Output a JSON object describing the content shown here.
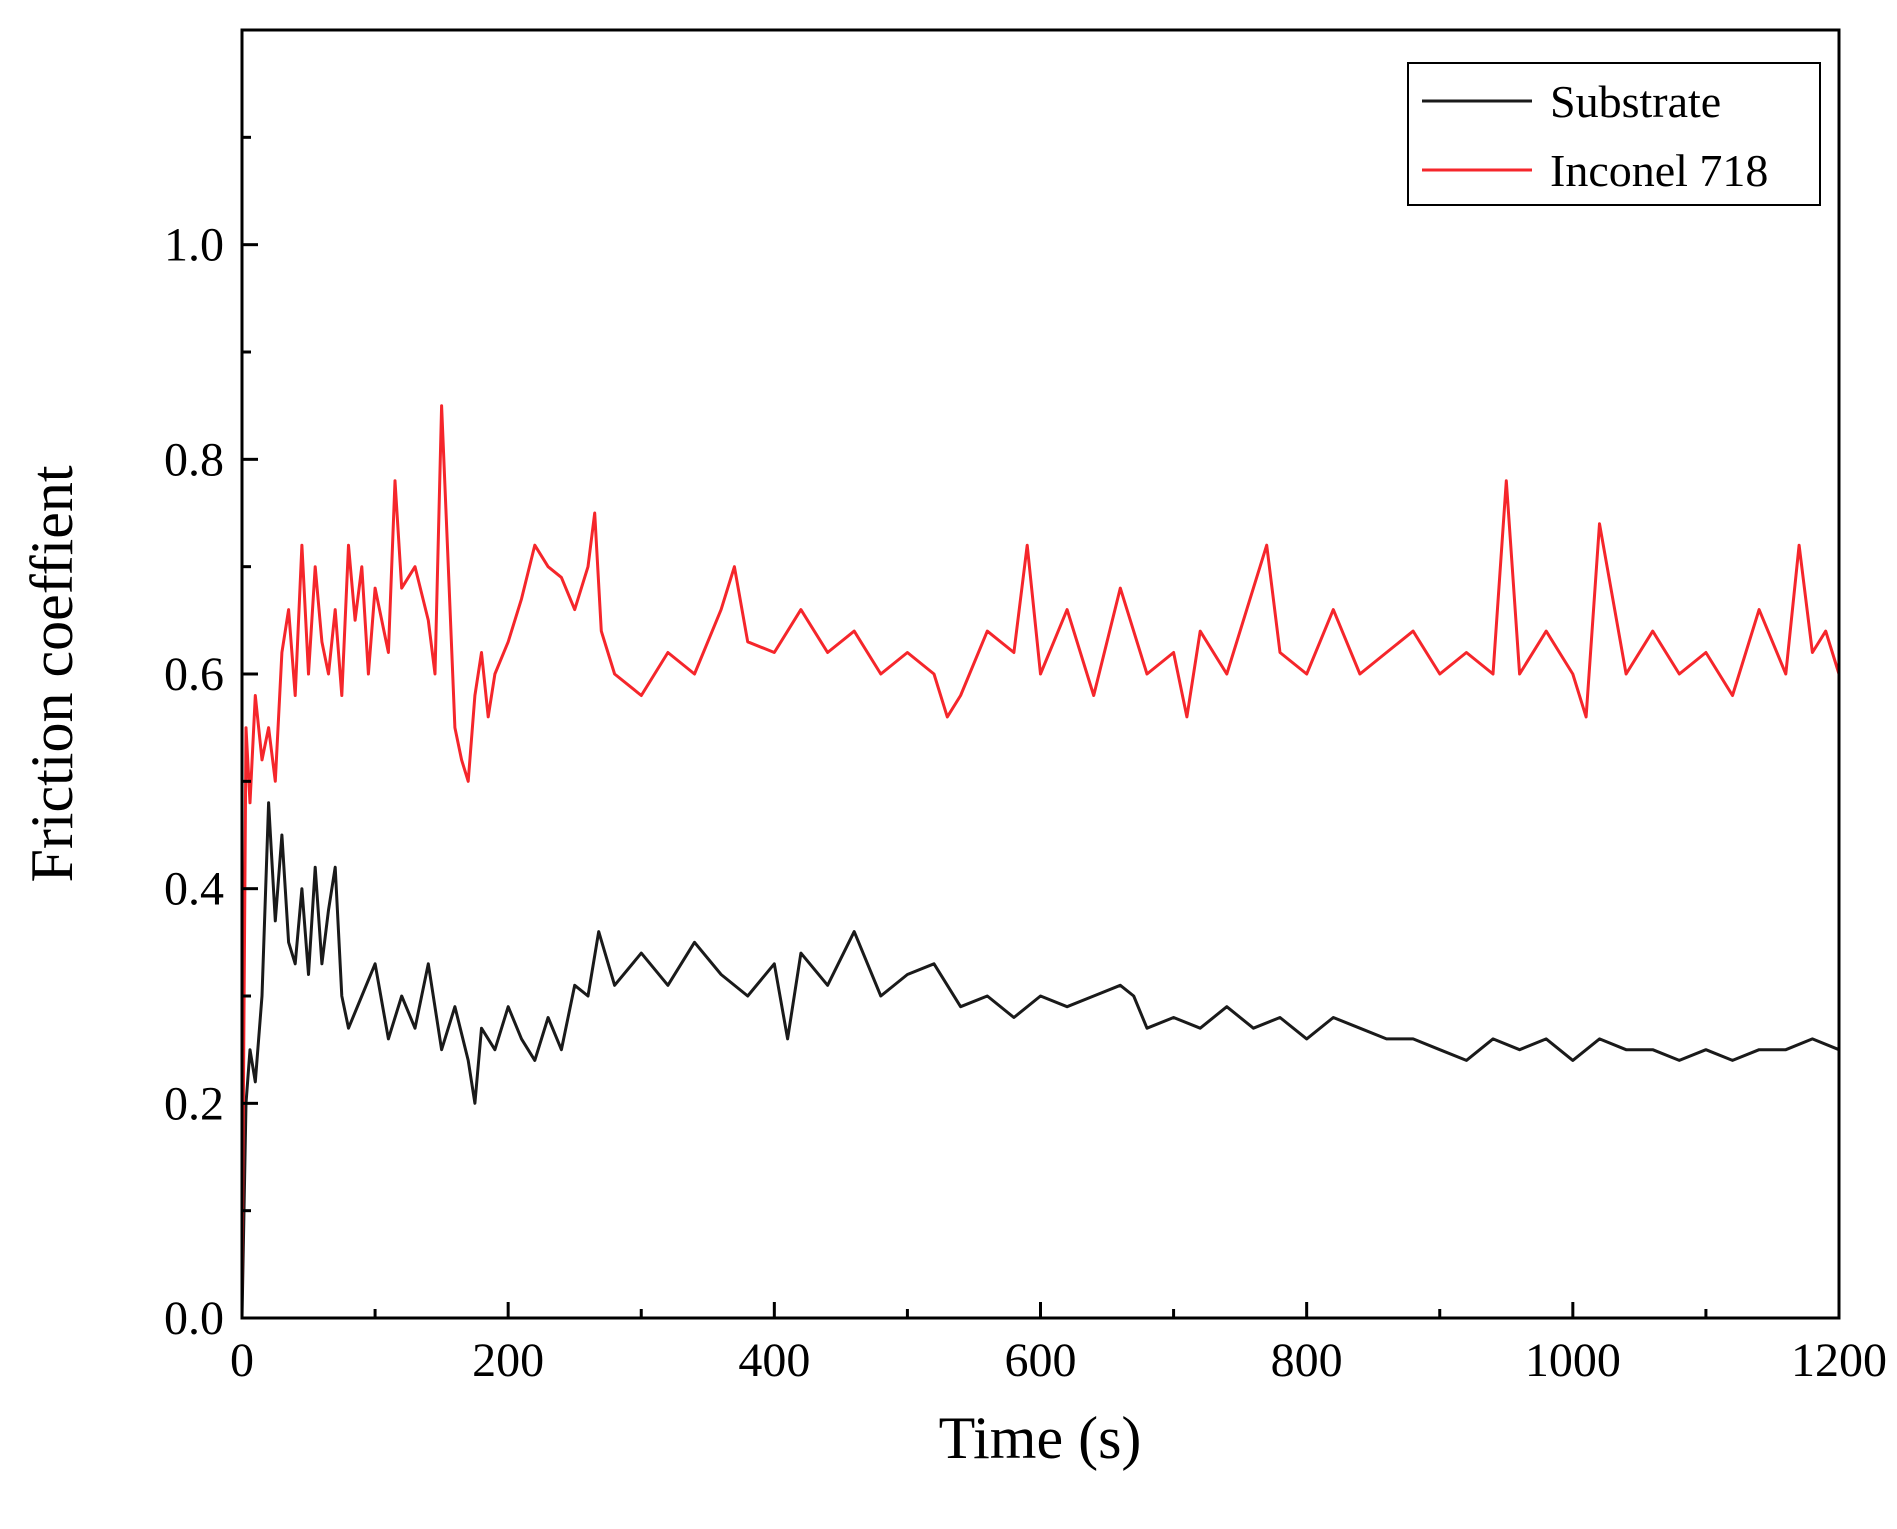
{
  "chart_data": {
    "type": "line",
    "title": "",
    "xlabel": "Time (s)",
    "ylabel": "Friction coeffient",
    "xlim": [
      0,
      1200
    ],
    "ylim": [
      0,
      1.2
    ],
    "x_ticks": [
      0,
      200,
      400,
      600,
      800,
      1000,
      1200
    ],
    "x_tick_labels": [
      "0",
      "200",
      "400",
      "600",
      "800",
      "1000",
      "1200"
    ],
    "y_ticks": [
      0.0,
      0.2,
      0.4,
      0.6,
      0.8,
      1.0
    ],
    "y_tick_labels": [
      "0.0",
      "0.2",
      "0.4",
      "0.6",
      "0.8",
      "1.0"
    ],
    "grid": false,
    "legend": {
      "position": "top-right",
      "entries": [
        "Substrate",
        "Inconel 718"
      ]
    },
    "series": [
      {
        "name": "Substrate",
        "color": "#1a1a1a",
        "x": [
          0,
          3,
          6,
          10,
          15,
          20,
          25,
          30,
          35,
          40,
          45,
          50,
          55,
          60,
          65,
          70,
          75,
          80,
          90,
          100,
          110,
          120,
          130,
          140,
          150,
          160,
          170,
          175,
          180,
          190,
          200,
          210,
          220,
          230,
          240,
          250,
          260,
          268,
          280,
          300,
          320,
          340,
          360,
          380,
          400,
          410,
          420,
          440,
          460,
          480,
          500,
          520,
          540,
          560,
          580,
          600,
          620,
          640,
          660,
          670,
          680,
          700,
          720,
          740,
          760,
          780,
          800,
          820,
          840,
          860,
          880,
          900,
          920,
          940,
          960,
          980,
          1000,
          1020,
          1040,
          1060,
          1080,
          1100,
          1120,
          1140,
          1160,
          1180,
          1200
        ],
        "values": [
          0.0,
          0.2,
          0.25,
          0.22,
          0.3,
          0.48,
          0.37,
          0.45,
          0.35,
          0.33,
          0.4,
          0.32,
          0.42,
          0.33,
          0.38,
          0.42,
          0.3,
          0.27,
          0.3,
          0.33,
          0.26,
          0.3,
          0.27,
          0.33,
          0.25,
          0.29,
          0.24,
          0.2,
          0.27,
          0.25,
          0.29,
          0.26,
          0.24,
          0.28,
          0.25,
          0.31,
          0.3,
          0.36,
          0.31,
          0.34,
          0.31,
          0.35,
          0.32,
          0.3,
          0.33,
          0.26,
          0.34,
          0.31,
          0.36,
          0.3,
          0.32,
          0.33,
          0.29,
          0.3,
          0.28,
          0.3,
          0.29,
          0.3,
          0.31,
          0.3,
          0.27,
          0.28,
          0.27,
          0.29,
          0.27,
          0.28,
          0.26,
          0.28,
          0.27,
          0.26,
          0.26,
          0.25,
          0.24,
          0.26,
          0.25,
          0.26,
          0.24,
          0.26,
          0.25,
          0.25,
          0.24,
          0.25,
          0.24,
          0.25,
          0.25,
          0.26,
          0.25
        ]
      },
      {
        "name": "Inconel 718",
        "color": "#f5262b",
        "x": [
          0,
          3,
          6,
          10,
          15,
          20,
          25,
          30,
          35,
          40,
          45,
          50,
          55,
          60,
          65,
          70,
          75,
          80,
          85,
          90,
          95,
          100,
          110,
          115,
          120,
          130,
          140,
          145,
          150,
          155,
          160,
          165,
          170,
          175,
          180,
          185,
          190,
          200,
          210,
          220,
          230,
          240,
          250,
          260,
          265,
          270,
          280,
          300,
          320,
          340,
          360,
          370,
          380,
          400,
          420,
          440,
          460,
          480,
          500,
          520,
          530,
          540,
          560,
          580,
          590,
          600,
          620,
          640,
          660,
          680,
          700,
          710,
          720,
          740,
          760,
          770,
          780,
          800,
          820,
          840,
          860,
          880,
          900,
          920,
          940,
          950,
          960,
          980,
          1000,
          1010,
          1020,
          1040,
          1060,
          1080,
          1100,
          1120,
          1140,
          1160,
          1170,
          1180,
          1190,
          1200
        ],
        "values": [
          0.02,
          0.55,
          0.48,
          0.58,
          0.52,
          0.55,
          0.5,
          0.62,
          0.66,
          0.58,
          0.72,
          0.6,
          0.7,
          0.63,
          0.6,
          0.66,
          0.58,
          0.72,
          0.65,
          0.7,
          0.6,
          0.68,
          0.62,
          0.78,
          0.68,
          0.7,
          0.65,
          0.6,
          0.85,
          0.7,
          0.55,
          0.52,
          0.5,
          0.58,
          0.62,
          0.56,
          0.6,
          0.63,
          0.67,
          0.72,
          0.7,
          0.69,
          0.66,
          0.7,
          0.75,
          0.64,
          0.6,
          0.58,
          0.62,
          0.6,
          0.66,
          0.7,
          0.63,
          0.62,
          0.66,
          0.62,
          0.64,
          0.6,
          0.62,
          0.6,
          0.56,
          0.58,
          0.64,
          0.62,
          0.72,
          0.6,
          0.66,
          0.58,
          0.68,
          0.6,
          0.62,
          0.56,
          0.64,
          0.6,
          0.68,
          0.72,
          0.62,
          0.6,
          0.66,
          0.6,
          0.62,
          0.64,
          0.6,
          0.62,
          0.6,
          0.78,
          0.6,
          0.64,
          0.6,
          0.56,
          0.74,
          0.6,
          0.64,
          0.6,
          0.62,
          0.58,
          0.66,
          0.6,
          0.72,
          0.62,
          0.64,
          0.6
        ]
      }
    ]
  }
}
